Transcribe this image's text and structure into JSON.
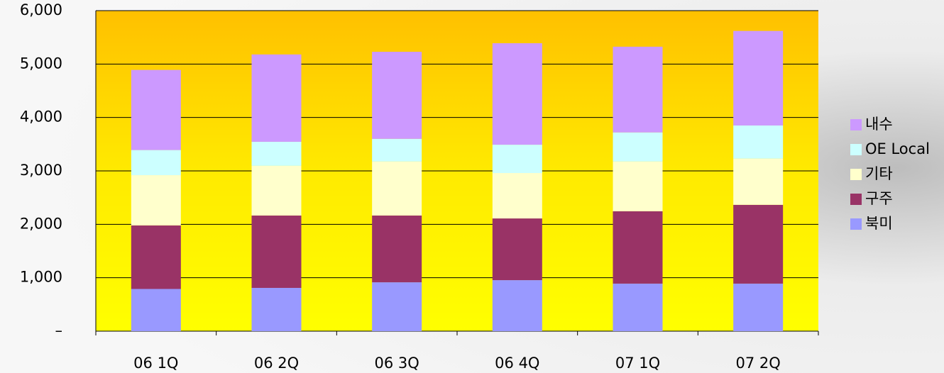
{
  "chart_data": {
    "type": "stacked-bar",
    "categories": [
      "06 1Q",
      "06 2Q",
      "06 3Q",
      "06 4Q",
      "07 1Q",
      "07 2Q"
    ],
    "series": [
      {
        "name": "북미",
        "color": "#9999ff",
        "values": [
          790,
          810,
          915,
          955,
          890,
          890
        ]
      },
      {
        "name": "구주",
        "color": "#993366",
        "values": [
          1190,
          1355,
          1250,
          1155,
          1355,
          1475
        ]
      },
      {
        "name": "기타",
        "color": "#ffffcc",
        "values": [
          940,
          930,
          1010,
          850,
          930,
          865
        ]
      },
      {
        "name": "OE Local",
        "color": "#ccffff",
        "values": [
          470,
          450,
          425,
          530,
          545,
          620
        ]
      },
      {
        "name": "내수",
        "color": "#cc99ff",
        "values": [
          1500,
          1635,
          1630,
          1900,
          1605,
          1770
        ]
      }
    ],
    "ylim": [
      0,
      6000
    ],
    "yticks": [
      {
        "value": 0,
        "label": "–"
      },
      {
        "value": 1000,
        "label": "1,000"
      },
      {
        "value": 2000,
        "label": "2,000"
      },
      {
        "value": 3000,
        "label": "3,000"
      },
      {
        "value": 4000,
        "label": "4,000"
      },
      {
        "value": 5000,
        "label": "5,000"
      },
      {
        "value": 6000,
        "label": "6,000"
      }
    ],
    "grid": true,
    "legend": "right"
  }
}
